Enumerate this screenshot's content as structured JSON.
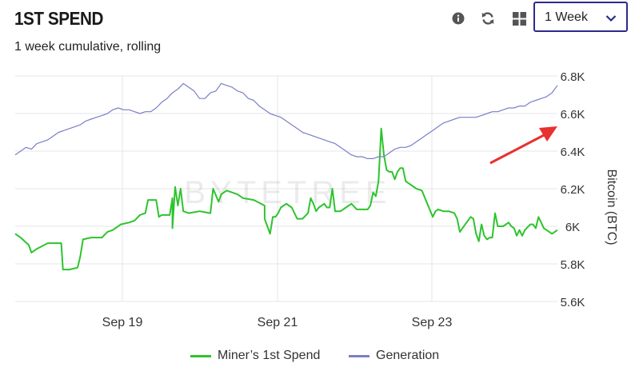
{
  "header": {
    "title": "1ST SPEND",
    "subtitle": "1 week cumulative, rolling"
  },
  "toolbar": {
    "icons": [
      "info-icon",
      "refresh-icon",
      "grid-icon"
    ],
    "range_value": "1 Week"
  },
  "watermark": "BYTETREE",
  "colors": {
    "spend": "#2dc42d",
    "generation": "#7a7fc7",
    "arrow": "#e8312f",
    "grid": "#e6e6e6",
    "select_border": "#2d2a8c"
  },
  "chart_data": {
    "type": "line",
    "x": [
      "Sep 17 12:00",
      "Sep 24 12:00"
    ],
    "x_ticks": [
      "Sep 19",
      "Sep 21",
      "Sep 23"
    ],
    "ylabel": "Bitcoin (BTC)",
    "ylim": [
      5600,
      6800
    ],
    "y_ticks": [
      "5.6K",
      "5.8K",
      "6K",
      "6.2K",
      "6.4K",
      "6.6K",
      "6.8K"
    ],
    "legend_position": "bottom",
    "grid": true,
    "series": [
      {
        "name": "Miner’s 1st Spend",
        "points": [
          [
            0,
            5960
          ],
          [
            0.01,
            5940
          ],
          [
            0.025,
            5900
          ],
          [
            0.03,
            5860
          ],
          [
            0.04,
            5880
          ],
          [
            0.06,
            5910
          ],
          [
            0.085,
            5910
          ],
          [
            0.088,
            5770
          ],
          [
            0.1,
            5770
          ],
          [
            0.115,
            5780
          ],
          [
            0.12,
            5840
          ],
          [
            0.125,
            5930
          ],
          [
            0.14,
            5940
          ],
          [
            0.16,
            5940
          ],
          [
            0.17,
            5970
          ],
          [
            0.18,
            5980
          ],
          [
            0.195,
            6010
          ],
          [
            0.21,
            6020
          ],
          [
            0.22,
            6030
          ],
          [
            0.23,
            6060
          ],
          [
            0.24,
            6070
          ],
          [
            0.245,
            6140
          ],
          [
            0.26,
            6140
          ],
          [
            0.265,
            6050
          ],
          [
            0.27,
            6060
          ],
          [
            0.285,
            6060
          ],
          [
            0.29,
            6150
          ],
          [
            0.29,
            5990
          ],
          [
            0.295,
            6210
          ],
          [
            0.3,
            6110
          ],
          [
            0.305,
            6200
          ],
          [
            0.31,
            6080
          ],
          [
            0.32,
            6070
          ],
          [
            0.34,
            6080
          ],
          [
            0.36,
            6070
          ],
          [
            0.365,
            6200
          ],
          [
            0.375,
            6130
          ],
          [
            0.38,
            6170
          ],
          [
            0.39,
            6190
          ],
          [
            0.4,
            6180
          ],
          [
            0.41,
            6170
          ],
          [
            0.42,
            6150
          ],
          [
            0.44,
            6140
          ],
          [
            0.46,
            6110
          ],
          [
            0.46,
            6040
          ],
          [
            0.47,
            5960
          ],
          [
            0.475,
            6050
          ],
          [
            0.48,
            6050
          ],
          [
            0.485,
            6070
          ],
          [
            0.49,
            6100
          ],
          [
            0.5,
            6120
          ],
          [
            0.51,
            6100
          ],
          [
            0.52,
            6040
          ],
          [
            0.53,
            6040
          ],
          [
            0.54,
            6070
          ],
          [
            0.545,
            6150
          ],
          [
            0.55,
            6120
          ],
          [
            0.555,
            6080
          ],
          [
            0.56,
            6100
          ],
          [
            0.57,
            6120
          ],
          [
            0.575,
            6100
          ],
          [
            0.58,
            6100
          ],
          [
            0.585,
            6200
          ],
          [
            0.59,
            6080
          ],
          [
            0.6,
            6080
          ],
          [
            0.61,
            6100
          ],
          [
            0.62,
            6120
          ],
          [
            0.63,
            6090
          ],
          [
            0.64,
            6090
          ],
          [
            0.65,
            6090
          ],
          [
            0.655,
            6110
          ],
          [
            0.66,
            6180
          ],
          [
            0.665,
            6160
          ],
          [
            0.67,
            6240
          ],
          [
            0.675,
            6520
          ],
          [
            0.68,
            6380
          ],
          [
            0.685,
            6300
          ],
          [
            0.69,
            6290
          ],
          [
            0.695,
            6290
          ],
          [
            0.7,
            6250
          ],
          [
            0.705,
            6290
          ],
          [
            0.71,
            6310
          ],
          [
            0.715,
            6310
          ],
          [
            0.72,
            6240
          ],
          [
            0.73,
            6220
          ],
          [
            0.74,
            6200
          ],
          [
            0.75,
            6190
          ],
          [
            0.76,
            6120
          ],
          [
            0.77,
            6050
          ],
          [
            0.775,
            6080
          ],
          [
            0.78,
            6090
          ],
          [
            0.79,
            6080
          ],
          [
            0.8,
            6080
          ],
          [
            0.81,
            6070
          ],
          [
            0.815,
            6040
          ],
          [
            0.82,
            5970
          ],
          [
            0.83,
            6010
          ],
          [
            0.835,
            6030
          ],
          [
            0.84,
            6050
          ],
          [
            0.845,
            6040
          ],
          [
            0.85,
            5960
          ],
          [
            0.855,
            5920
          ],
          [
            0.86,
            6010
          ],
          [
            0.865,
            5950
          ],
          [
            0.87,
            5930
          ],
          [
            0.875,
            5940
          ],
          [
            0.88,
            5940
          ],
          [
            0.885,
            6070
          ],
          [
            0.89,
            6000
          ],
          [
            0.9,
            6000
          ],
          [
            0.91,
            6020
          ],
          [
            0.915,
            6000
          ],
          [
            0.92,
            5990
          ],
          [
            0.925,
            5950
          ],
          [
            0.93,
            5980
          ],
          [
            0.935,
            5950
          ],
          [
            0.94,
            5980
          ],
          [
            0.95,
            6010
          ],
          [
            0.955,
            6010
          ],
          [
            0.96,
            5990
          ],
          [
            0.965,
            6050
          ],
          [
            0.97,
            6020
          ],
          [
            0.975,
            5990
          ],
          [
            0.98,
            5980
          ],
          [
            0.99,
            5960
          ],
          [
            1.0,
            5980
          ]
        ]
      },
      {
        "name": "Generation",
        "points": [
          [
            0,
            6380
          ],
          [
            0.01,
            6400
          ],
          [
            0.02,
            6420
          ],
          [
            0.03,
            6410
          ],
          [
            0.04,
            6440
          ],
          [
            0.05,
            6450
          ],
          [
            0.06,
            6460
          ],
          [
            0.07,
            6480
          ],
          [
            0.08,
            6500
          ],
          [
            0.09,
            6510
          ],
          [
            0.1,
            6520
          ],
          [
            0.11,
            6530
          ],
          [
            0.12,
            6540
          ],
          [
            0.13,
            6560
          ],
          [
            0.14,
            6570
          ],
          [
            0.15,
            6580
          ],
          [
            0.16,
            6590
          ],
          [
            0.17,
            6600
          ],
          [
            0.18,
            6620
          ],
          [
            0.19,
            6630
          ],
          [
            0.2,
            6620
          ],
          [
            0.21,
            6620
          ],
          [
            0.22,
            6610
          ],
          [
            0.23,
            6600
          ],
          [
            0.24,
            6610
          ],
          [
            0.25,
            6610
          ],
          [
            0.26,
            6630
          ],
          [
            0.27,
            6660
          ],
          [
            0.28,
            6680
          ],
          [
            0.29,
            6710
          ],
          [
            0.3,
            6730
          ],
          [
            0.31,
            6760
          ],
          [
            0.32,
            6740
          ],
          [
            0.33,
            6720
          ],
          [
            0.34,
            6680
          ],
          [
            0.35,
            6680
          ],
          [
            0.36,
            6710
          ],
          [
            0.37,
            6720
          ],
          [
            0.38,
            6760
          ],
          [
            0.39,
            6750
          ],
          [
            0.4,
            6740
          ],
          [
            0.41,
            6720
          ],
          [
            0.42,
            6710
          ],
          [
            0.43,
            6680
          ],
          [
            0.44,
            6670
          ],
          [
            0.45,
            6640
          ],
          [
            0.46,
            6620
          ],
          [
            0.47,
            6600
          ],
          [
            0.48,
            6590
          ],
          [
            0.49,
            6580
          ],
          [
            0.5,
            6560
          ],
          [
            0.51,
            6540
          ],
          [
            0.52,
            6520
          ],
          [
            0.53,
            6500
          ],
          [
            0.54,
            6490
          ],
          [
            0.55,
            6480
          ],
          [
            0.56,
            6470
          ],
          [
            0.57,
            6460
          ],
          [
            0.58,
            6450
          ],
          [
            0.59,
            6440
          ],
          [
            0.6,
            6420
          ],
          [
            0.61,
            6400
          ],
          [
            0.62,
            6380
          ],
          [
            0.63,
            6370
          ],
          [
            0.64,
            6370
          ],
          [
            0.65,
            6360
          ],
          [
            0.66,
            6360
          ],
          [
            0.67,
            6370
          ],
          [
            0.68,
            6370
          ],
          [
            0.69,
            6390
          ],
          [
            0.7,
            6410
          ],
          [
            0.71,
            6420
          ],
          [
            0.72,
            6420
          ],
          [
            0.73,
            6430
          ],
          [
            0.74,
            6450
          ],
          [
            0.75,
            6470
          ],
          [
            0.76,
            6490
          ],
          [
            0.77,
            6510
          ],
          [
            0.78,
            6530
          ],
          [
            0.79,
            6550
          ],
          [
            0.8,
            6560
          ],
          [
            0.81,
            6570
          ],
          [
            0.82,
            6580
          ],
          [
            0.83,
            6580
          ],
          [
            0.84,
            6580
          ],
          [
            0.85,
            6580
          ],
          [
            0.86,
            6590
          ],
          [
            0.87,
            6600
          ],
          [
            0.88,
            6610
          ],
          [
            0.89,
            6610
          ],
          [
            0.9,
            6620
          ],
          [
            0.91,
            6630
          ],
          [
            0.92,
            6630
          ],
          [
            0.93,
            6640
          ],
          [
            0.94,
            6640
          ],
          [
            0.95,
            6660
          ],
          [
            0.96,
            6670
          ],
          [
            0.97,
            6680
          ],
          [
            0.98,
            6690
          ],
          [
            0.99,
            6710
          ],
          [
            1.0,
            6750
          ]
        ]
      }
    ]
  }
}
